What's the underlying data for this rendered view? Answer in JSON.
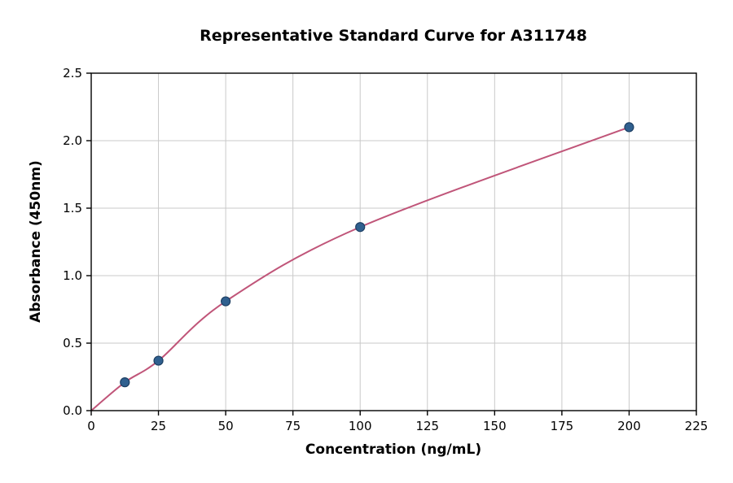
{
  "chart_data": {
    "type": "scatter",
    "title": "Representative Standard Curve for A311748",
    "xlabel": "Concentration (ng/mL)",
    "ylabel": "Absorbance (450nm)",
    "xlim": [
      0,
      225
    ],
    "ylim": [
      0,
      2.5
    ],
    "x_ticks": [
      0,
      25,
      50,
      75,
      100,
      125,
      150,
      175,
      200,
      225
    ],
    "x_tick_labels": [
      "0",
      "25",
      "50",
      "75",
      "100",
      "125",
      "150",
      "175",
      "200",
      "225"
    ],
    "y_ticks": [
      0,
      0.5,
      1.0,
      1.5,
      2.0,
      2.5
    ],
    "y_tick_labels": [
      "0.0",
      "0.5",
      "1.0",
      "1.5",
      "2.0",
      "2.5"
    ],
    "grid": true,
    "legend": "none",
    "points": {
      "x": [
        12.5,
        25,
        50,
        100,
        200
      ],
      "y": [
        0.21,
        0.37,
        0.81,
        1.36,
        2.1
      ]
    },
    "curve_anchor": {
      "x": [
        0,
        12.5,
        25,
        50,
        100,
        200
      ],
      "y": [
        0.0,
        0.21,
        0.37,
        0.81,
        1.36,
        2.1
      ]
    },
    "colors": {
      "marker_fill": "#30608f",
      "marker_edge": "#1d3f63",
      "line": "#c05579",
      "grid": "#c9c9c9",
      "axis": "#000000",
      "background": "#ffffff"
    }
  }
}
